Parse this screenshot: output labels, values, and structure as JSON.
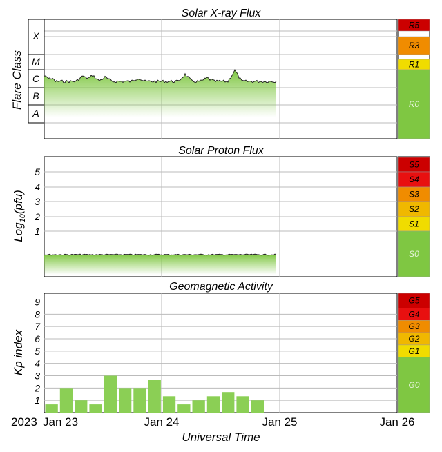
{
  "chart_data": [
    {
      "type": "line",
      "title": "Solar X-ray Flux",
      "ylabel": "Flare Class",
      "flare_classes": [
        "X",
        "M",
        "C",
        "B",
        "A"
      ],
      "scale": [
        {
          "label": "R5",
          "color": "#cc0000"
        },
        {
          "label": "R3",
          "color": "#f08c00"
        },
        {
          "label": "R1",
          "color": "#f0dc00"
        },
        {
          "label": "R0",
          "color": "#7fc742"
        }
      ],
      "x": [
        "2023-01-23",
        "2023-01-23T12",
        "2023-01-24",
        "2023-01-24T12",
        "2023-01-24T22"
      ],
      "series": [
        {
          "values_class": [
            "C",
            "C",
            "C",
            "C",
            "C"
          ]
        }
      ]
    },
    {
      "type": "line",
      "title": "Solar Proton Flux",
      "ylabel_prefix": "Log",
      "ylabel_sub": "10",
      "ylabel_suffix": "(pfu)",
      "yticks": [
        "5",
        "4",
        "3",
        "2",
        "1"
      ],
      "scale": [
        {
          "label": "S5",
          "color": "#cc0000"
        },
        {
          "label": "S4",
          "color": "#e81010"
        },
        {
          "label": "S3",
          "color": "#f08c00"
        },
        {
          "label": "S2",
          "color": "#f0b800"
        },
        {
          "label": "S1",
          "color": "#f0dc00"
        },
        {
          "label": "S0",
          "color": "#7fc742"
        }
      ],
      "series": [
        {
          "values_log10": [
            -0.65,
            -0.65,
            -0.66,
            -0.66
          ]
        }
      ]
    },
    {
      "type": "bar",
      "title": "Geomagnetic Activity",
      "ylabel": "Kp index",
      "yticks": [
        "9",
        "8",
        "7",
        "6",
        "5",
        "4",
        "3",
        "2",
        "1"
      ],
      "ylim": [
        0,
        9.7
      ],
      "scale": [
        {
          "label": "G5",
          "color": "#cc0000"
        },
        {
          "label": "G4",
          "color": "#e81010"
        },
        {
          "label": "G3",
          "color": "#f08c00"
        },
        {
          "label": "G2",
          "color": "#f0b800"
        },
        {
          "label": "G1",
          "color": "#f0dc00"
        },
        {
          "label": "G0",
          "color": "#7fc742"
        }
      ],
      "values": [
        0.67,
        2.0,
        1.0,
        0.67,
        3.0,
        2.0,
        2.0,
        2.67,
        1.33,
        0.67,
        1.0,
        1.33,
        1.67,
        1.33,
        1.0
      ]
    }
  ],
  "xaxis": {
    "year": "2023",
    "ticks": [
      "Jan 23",
      "Jan 24",
      "Jan 25",
      "Jan 26"
    ],
    "label": "Universal Time"
  },
  "colors": {
    "flux": "#7fc742",
    "bar": "#8bcf55",
    "grid": "#bbbbbb"
  }
}
